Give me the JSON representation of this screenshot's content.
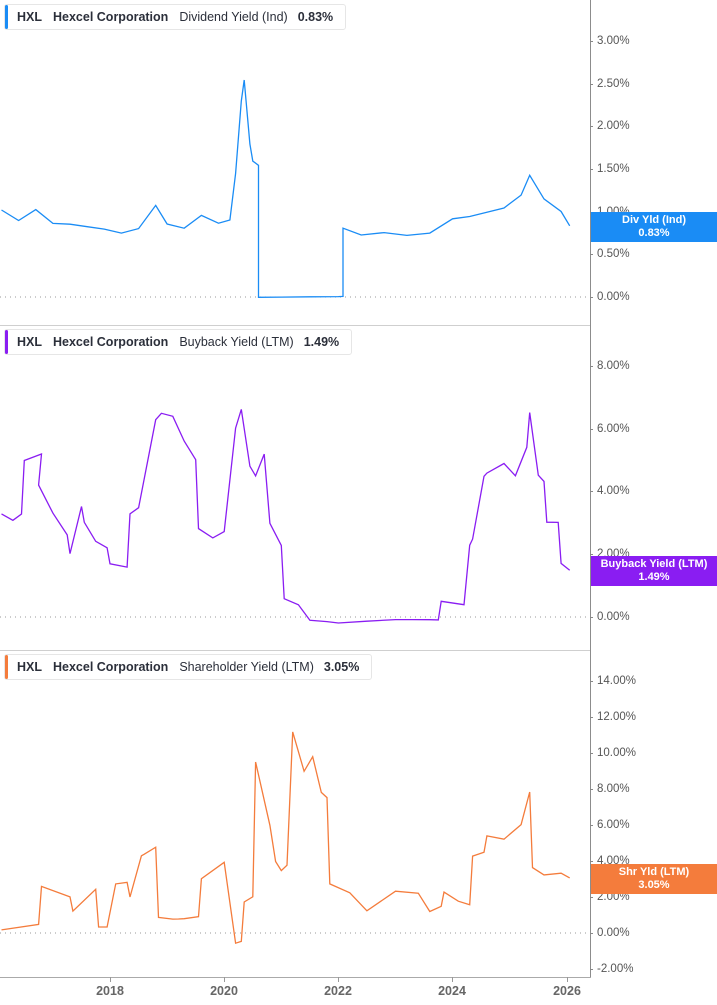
{
  "colors": {
    "dividend": "#1a8cf5",
    "buyback": "#8a1df2",
    "shareholder": "#f47c3c",
    "axis": "#8c8c8c",
    "text": "#2b2f3a"
  },
  "panels": [
    {
      "ticker": "HXL",
      "company": "Hexcel Corporation",
      "metric": "Dividend Yield (Ind)",
      "value": "0.83%",
      "badge_label": "Div Yld (Ind)",
      "badge_value": "0.83%",
      "yticks": [
        "3.00%",
        "2.50%",
        "2.00%",
        "1.50%",
        "1.00%",
        "0.50%",
        "0.00%"
      ]
    },
    {
      "ticker": "HXL",
      "company": "Hexcel Corporation",
      "metric": "Buyback Yield (LTM)",
      "value": "1.49%",
      "badge_label": "Buyback Yield (LTM)",
      "badge_value": "1.49%",
      "yticks": [
        "8.00%",
        "6.00%",
        "4.00%",
        "2.00%",
        "0.00%"
      ]
    },
    {
      "ticker": "HXL",
      "company": "Hexcel Corporation",
      "metric": "Shareholder Yield (LTM)",
      "value": "3.05%",
      "badge_label": "Shr Yld (LTM)",
      "badge_value": "3.05%",
      "yticks": [
        "14.00%",
        "12.00%",
        "10.00%",
        "8.00%",
        "6.00%",
        "4.00%",
        "2.00%",
        "0.00%",
        "-2.00%"
      ]
    }
  ],
  "xaxis": {
    "ticks": [
      "2018",
      "2020",
      "2022",
      "2024",
      "2026"
    ]
  },
  "chart_data": [
    {
      "type": "line",
      "title": "HXL Hexcel Corporation Dividend Yield (Ind) 0.83%",
      "xlabel": "",
      "ylabel": "Dividend Yield (Ind) %",
      "ylim": [
        0,
        3.4
      ],
      "x_ticks": [
        "2018",
        "2020",
        "2022",
        "2024",
        "2026"
      ],
      "y_ticks": [
        0,
        0.5,
        1.0,
        1.5,
        2.0,
        2.5,
        3.0
      ],
      "grid": false,
      "series": [
        {
          "name": "Dividend Yield (Ind)",
          "color": "#1a8cf5",
          "x": [
            2016.1,
            2016.4,
            2016.7,
            2017.0,
            2017.3,
            2017.6,
            2017.9,
            2018.2,
            2018.5,
            2018.8,
            2019.0,
            2019.3,
            2019.6,
            2019.9,
            2020.1,
            2020.2,
            2020.3,
            2020.35,
            2020.45,
            2020.5,
            2020.6,
            2020.6,
            2021.0,
            2021.5,
            2022.0,
            2022.08,
            2022.08,
            2022.4,
            2022.8,
            2023.2,
            2023.6,
            2024.0,
            2024.3,
            2024.6,
            2024.9,
            2025.2,
            2025.35,
            2025.6,
            2025.9,
            2026.05
          ],
          "values": [
            1.02,
            0.9,
            1.03,
            0.87,
            0.86,
            0.83,
            0.8,
            0.75,
            0.8,
            1.07,
            0.85,
            0.8,
            0.95,
            0.86,
            0.9,
            1.45,
            2.3,
            2.55,
            1.8,
            1.6,
            1.55,
            0.0,
            0.0,
            0.0,
            0.0,
            0.0,
            0.8,
            0.72,
            0.75,
            0.72,
            0.75,
            0.92,
            0.95,
            1.0,
            1.05,
            1.2,
            1.43,
            1.15,
            1.0,
            0.83
          ]
        }
      ]
    },
    {
      "type": "line",
      "title": "HXL Hexcel Corporation Buyback Yield (LTM) 1.49%",
      "xlabel": "",
      "ylabel": "Buyback Yield (LTM) %",
      "ylim": [
        -0.5,
        9.0
      ],
      "x_ticks": [
        "2018",
        "2020",
        "2022",
        "2024",
        "2026"
      ],
      "y_ticks": [
        0,
        2,
        4,
        6,
        8
      ],
      "grid": false,
      "series": [
        {
          "name": "Buyback Yield (LTM)",
          "color": "#8a1df2",
          "x": [
            2016.1,
            2016.3,
            2016.45,
            2016.5,
            2016.8,
            2016.75,
            2017.0,
            2017.25,
            2017.3,
            2017.5,
            2017.55,
            2017.75,
            2017.95,
            2018.0,
            2018.3,
            2018.35,
            2018.5,
            2018.8,
            2018.9,
            2019.1,
            2019.3,
            2019.5,
            2019.55,
            2019.8,
            2020.0,
            2020.2,
            2020.3,
            2020.45,
            2020.55,
            2020.7,
            2020.8,
            2021.0,
            2021.05,
            2021.3,
            2021.5,
            2021.8,
            2022.0,
            2022.5,
            2023.0,
            2023.3,
            2023.6,
            2023.75,
            2023.8,
            2024.2,
            2024.3,
            2024.35,
            2024.55,
            2024.6,
            2024.9,
            2025.1,
            2025.3,
            2025.35,
            2025.5,
            2025.6,
            2025.65,
            2025.85,
            2025.9,
            2026.05
          ],
          "values": [
            3.3,
            3.1,
            3.3,
            5.0,
            5.2,
            4.2,
            3.3,
            2.6,
            2.0,
            3.5,
            3.0,
            2.4,
            2.2,
            1.7,
            1.6,
            3.3,
            3.5,
            6.3,
            6.5,
            6.4,
            5.6,
            5.0,
            2.8,
            2.5,
            2.7,
            6.0,
            6.6,
            4.8,
            4.5,
            5.2,
            3.0,
            2.3,
            0.6,
            0.4,
            -0.1,
            -0.15,
            -0.2,
            -0.15,
            -0.1,
            -0.1,
            -0.1,
            -0.1,
            0.5,
            0.4,
            2.3,
            2.5,
            4.5,
            4.6,
            4.9,
            4.5,
            5.4,
            6.5,
            4.5,
            4.3,
            3.0,
            3.0,
            1.7,
            1.49
          ]
        }
      ]
    },
    {
      "type": "line",
      "title": "HXL Hexcel Corporation Shareholder Yield (LTM) 3.05%",
      "xlabel": "",
      "ylabel": "Shareholder Yield (LTM) %",
      "ylim": [
        -2.0,
        15.0
      ],
      "x_ticks": [
        "2018",
        "2020",
        "2022",
        "2024",
        "2026"
      ],
      "y_ticks": [
        -2,
        0,
        2,
        4,
        6,
        8,
        10,
        12,
        14
      ],
      "grid": false,
      "series": [
        {
          "name": "Shareholder Yield (LTM)",
          "color": "#f47c3c",
          "x": [
            2016.1,
            2016.75,
            2016.8,
            2017.3,
            2017.35,
            2017.75,
            2017.8,
            2017.95,
            2018.1,
            2018.3,
            2018.35,
            2018.55,
            2018.6,
            2018.8,
            2018.85,
            2019.1,
            2019.2,
            2019.3,
            2019.55,
            2019.6,
            2020.0,
            2020.2,
            2020.3,
            2020.35,
            2020.5,
            2020.55,
            2020.8,
            2020.9,
            2021.0,
            2021.1,
            2021.2,
            2021.4,
            2021.55,
            2021.7,
            2021.8,
            2021.85,
            2022.2,
            2022.5,
            2023.0,
            2023.4,
            2023.6,
            2023.8,
            2023.85,
            2024.1,
            2024.3,
            2024.35,
            2024.55,
            2024.6,
            2024.9,
            2025.2,
            2025.35,
            2025.4,
            2025.6,
            2025.9,
            2026.05
          ],
          "values": [
            0.2,
            0.5,
            2.6,
            2.0,
            1.2,
            2.4,
            0.3,
            0.3,
            2.7,
            2.8,
            2.0,
            4.3,
            4.4,
            4.8,
            0.9,
            0.8,
            0.8,
            0.8,
            0.9,
            3.0,
            3.9,
            -0.6,
            -0.5,
            1.7,
            2.0,
            9.5,
            6.0,
            4.0,
            3.5,
            3.8,
            11.2,
            9.0,
            9.8,
            7.8,
            7.5,
            2.7,
            2.2,
            1.2,
            2.3,
            2.2,
            1.2,
            1.5,
            2.3,
            1.8,
            1.6,
            4.3,
            4.5,
            5.4,
            5.2,
            6.0,
            7.8,
            3.6,
            3.2,
            3.3,
            3.05
          ]
        }
      ]
    }
  ]
}
